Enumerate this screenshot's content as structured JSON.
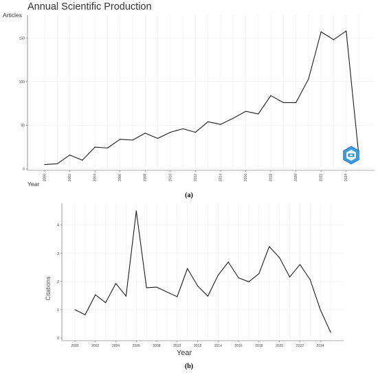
{
  "panel_a": {
    "caption": "(a)",
    "chart_data": {
      "type": "line",
      "title": "Annual Scientific Production",
      "ylabel": "Articles",
      "xlabel": "Year",
      "x": [
        2000,
        2001,
        2002,
        2003,
        2004,
        2005,
        2006,
        2007,
        2008,
        2009,
        2010,
        2011,
        2012,
        2013,
        2014,
        2015,
        2016,
        2017,
        2018,
        2019,
        2020,
        2021,
        2022,
        2023,
        2024,
        2025
      ],
      "values": [
        5,
        6,
        16,
        10,
        25,
        24,
        34,
        33,
        41,
        35,
        42,
        46,
        42,
        54,
        51,
        58,
        66,
        63,
        84,
        76,
        76,
        103,
        157,
        148,
        158,
        16
      ],
      "x_ticks": [
        "2000",
        "2002",
        "2004",
        "2006",
        "2008",
        "2010",
        "2012",
        "2014",
        "2016",
        "2018",
        "2020",
        "2022",
        "2024"
      ],
      "y_ticks": [
        "0",
        "50",
        "100",
        "150"
      ],
      "ylim": [
        0,
        162
      ],
      "grid": true
    }
  },
  "panel_b": {
    "caption": "(b)",
    "chart_data": {
      "type": "line",
      "title": "",
      "ylabel": "Citations",
      "xlabel": "Year",
      "x": [
        2000,
        2001,
        2002,
        2003,
        2004,
        2005,
        2006,
        2007,
        2008,
        2009,
        2010,
        2011,
        2012,
        2013,
        2014,
        2015,
        2016,
        2017,
        2018,
        2019,
        2020,
        2021,
        2022,
        2023,
        2024,
        2025
      ],
      "values": [
        1.0,
        0.82,
        1.53,
        1.25,
        1.93,
        1.48,
        4.5,
        1.78,
        1.8,
        1.63,
        1.46,
        2.46,
        1.84,
        1.48,
        2.22,
        2.69,
        2.13,
        1.99,
        2.28,
        3.24,
        2.85,
        2.16,
        2.6,
        2.07,
        1.0,
        0.2
      ],
      "x_ticks": [
        "2000",
        "2002",
        "2004",
        "2006",
        "2008",
        "2010",
        "2012",
        "2014",
        "2016",
        "2018",
        "2020",
        "2022",
        "2024"
      ],
      "y_ticks": [
        "0",
        "1",
        "2",
        "3",
        "4"
      ],
      "ylim": [
        0,
        4.7
      ],
      "grid": true
    }
  },
  "badge": {
    "icon": "hexagon-logo-icon",
    "color": "#2f8fd8"
  }
}
